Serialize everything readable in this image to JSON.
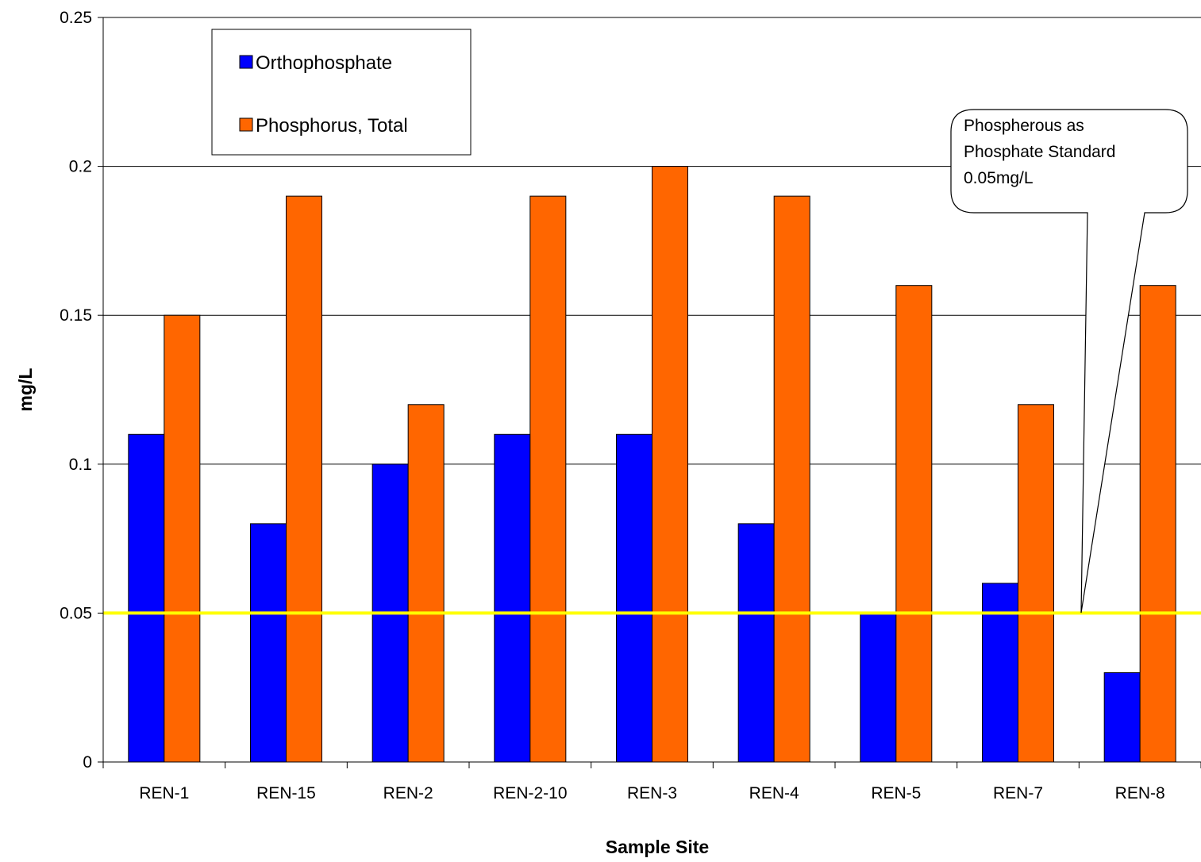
{
  "chart_data": {
    "type": "bar",
    "title": "",
    "xlabel": "Sample Site",
    "ylabel": "mg/L",
    "ylim": [
      0,
      0.25
    ],
    "yticks": [
      "0",
      "0.05",
      "0.1",
      "0.15",
      "0.2",
      "0.25"
    ],
    "grid": true,
    "legend_position": "top-left",
    "categories": [
      "REN-1",
      "REN-15",
      "REN-2",
      "REN-2-10",
      "REN-3",
      "REN-4",
      "REN-5",
      "REN-7",
      "REN-8"
    ],
    "series": [
      {
        "name": "Orthophosphate",
        "color": "#0000FF",
        "values": [
          0.11,
          0.08,
          0.1,
          0.11,
          0.11,
          0.08,
          0.05,
          0.06,
          0.03
        ]
      },
      {
        "name": "Phosphorus, Total",
        "color": "#FF6600",
        "values": [
          0.15,
          0.19,
          0.12,
          0.19,
          0.2,
          0.19,
          0.16,
          0.12,
          0.16
        ]
      }
    ],
    "reference_line": {
      "value": 0.05,
      "color": "#FFFF00"
    },
    "annotation": {
      "lines": [
        "Phospherous as",
        "Phosphate Standard",
        "0.05mg/L"
      ]
    }
  }
}
